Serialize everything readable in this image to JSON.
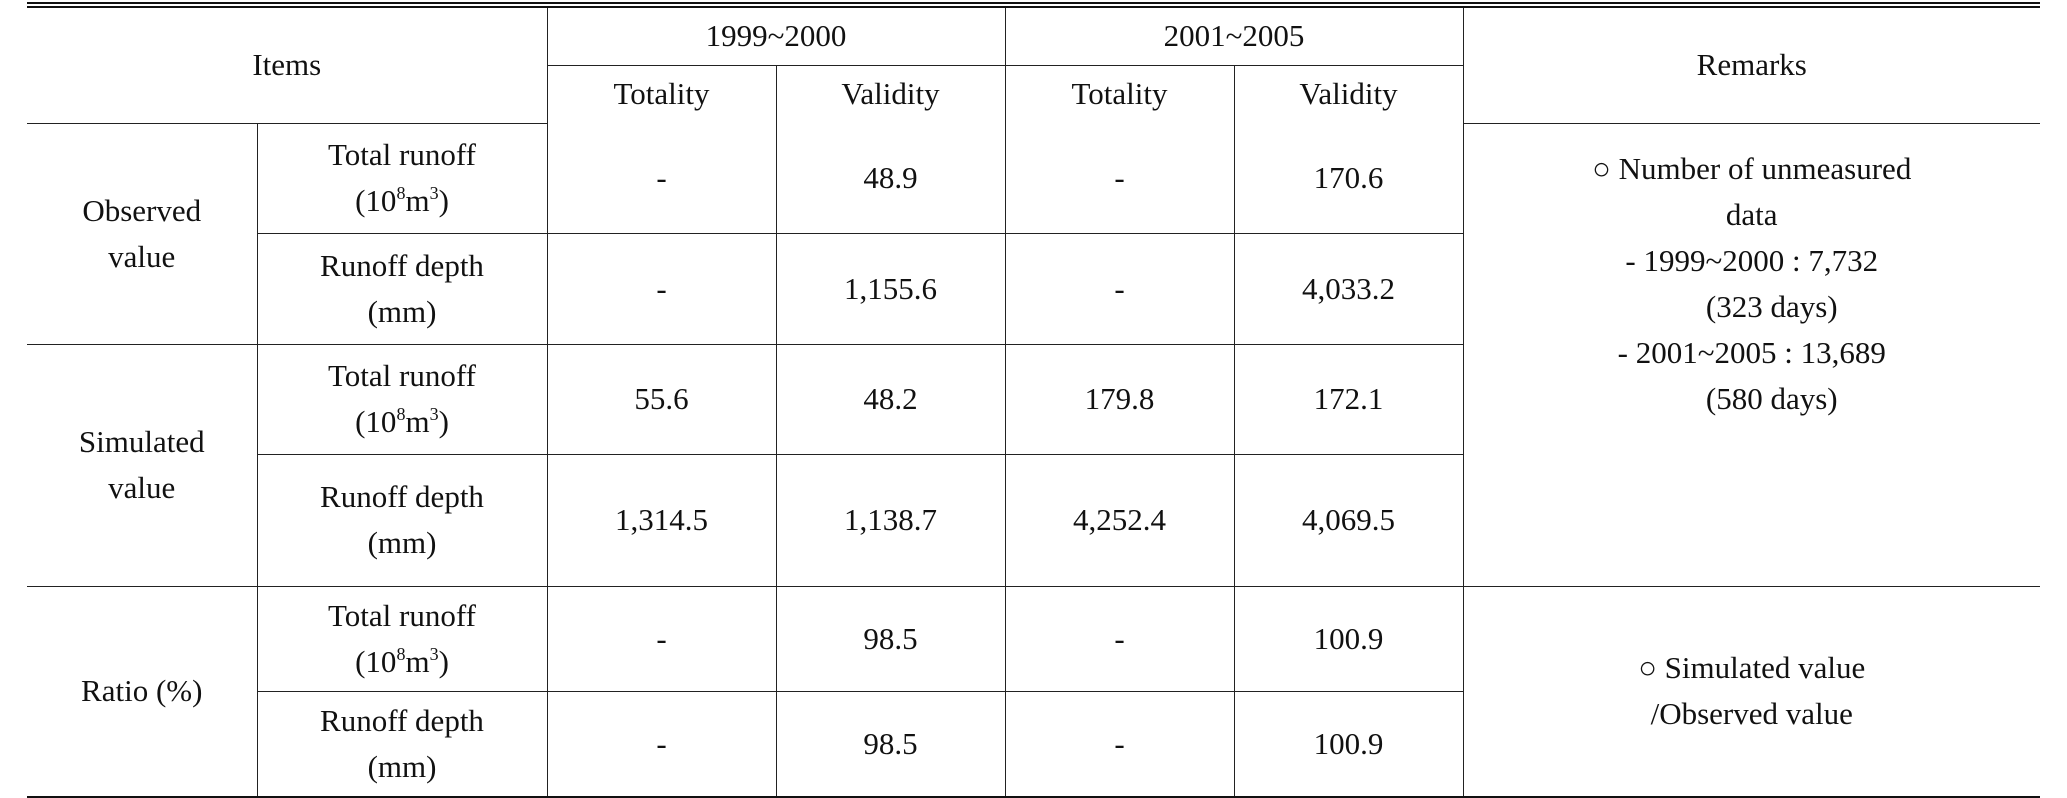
{
  "header": {
    "items": "Items",
    "period1": "1999~2000",
    "period2": "2001~2005",
    "remarks": "Remarks",
    "totality": "Totality",
    "validity": "Validity"
  },
  "units": {
    "runoff_unit_pre": "(10",
    "runoff_unit_exp1": "8",
    "runoff_unit_mid": "m",
    "runoff_unit_exp2": "3",
    "runoff_unit_post": ")",
    "depth_unit": "(mm)"
  },
  "labels": {
    "total_runoff": "Total runoff",
    "runoff_depth": "Runoff depth"
  },
  "groups": [
    {
      "name_line1": "Observed",
      "name_line2": "value",
      "rows": [
        {
          "p1_totality": "-",
          "p1_validity": "48.9",
          "p2_totality": "-",
          "p2_validity": "170.6"
        },
        {
          "p1_totality": "-",
          "p1_validity": "1,155.6",
          "p2_totality": "-",
          "p2_validity": "4,033.2"
        }
      ]
    },
    {
      "name_line1": "Simulated",
      "name_line2": "value",
      "rows": [
        {
          "p1_totality": "55.6",
          "p1_validity": "48.2",
          "p2_totality": "179.8",
          "p2_validity": "172.1"
        },
        {
          "p1_totality": "1,314.5",
          "p1_validity": "1,138.7",
          "p2_totality": "4,252.4",
          "p2_validity": "4,069.5"
        }
      ]
    },
    {
      "name_line1": "Ratio (%)",
      "name_line2": "",
      "rows": [
        {
          "p1_totality": "-",
          "p1_validity": "98.5",
          "p2_totality": "-",
          "p2_validity": "100.9"
        },
        {
          "p1_totality": "-",
          "p1_validity": "98.5",
          "p2_totality": "-",
          "p2_validity": "100.9"
        }
      ]
    }
  ],
  "remarks_1": {
    "line1": "○ Number of unmeasured",
    "line2": "data",
    "line3": "- 1999~2000 : 7,732",
    "line4": "(323 days)",
    "line5": "- 2001~2005 : 13,689",
    "line6": "(580 days)"
  },
  "remarks_2": {
    "line1": "○  Simulated value",
    "line2": "/Observed value"
  }
}
